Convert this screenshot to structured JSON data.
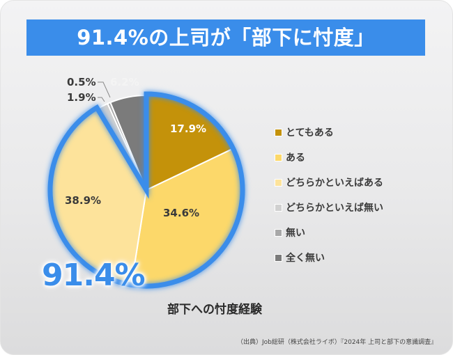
{
  "banner": {
    "title": "91.4%の上司が「部下に忖度」"
  },
  "highlight": {
    "value": "91.4%"
  },
  "chart_data": {
    "type": "pie",
    "title": "部下への忖度経験",
    "categories": [
      "とてもある",
      "ある",
      "どちらかといえばある",
      "どちらかといえば無い",
      "無い",
      "全く無い"
    ],
    "values": [
      17.9,
      34.6,
      38.9,
      1.9,
      0.5,
      6.2
    ],
    "value_labels": [
      "17.9%",
      "34.6%",
      "38.9%",
      "1.9%",
      "0.5%",
      "6.2%"
    ],
    "colors": [
      "#c4920a",
      "#fcd86a",
      "#fde39b",
      "#d0d0d0",
      "#a8a8a8",
      "#7b7b7b"
    ],
    "highlighted_total": "91.4%",
    "highlighted_categories": [
      "とてもある",
      "ある",
      "どちらかといえばある"
    ],
    "highlight_color": "#3a8dea",
    "legend_position": "right"
  },
  "legend": {
    "items": [
      {
        "label": "とてもある",
        "color": "#c4920a"
      },
      {
        "label": "ある",
        "color": "#fcd86a"
      },
      {
        "label": "どちらかといえばある",
        "color": "#fde39b"
      },
      {
        "label": "どちらかといえば無い",
        "color": "#d0d0d0"
      },
      {
        "label": "無い",
        "color": "#a8a8a8"
      },
      {
        "label": "全く無い",
        "color": "#7b7b7b"
      }
    ]
  },
  "labels": {
    "s1": "17.9%",
    "s2": "34.6%",
    "s3": "38.9%",
    "s4": "1.9%",
    "s5": "0.5%",
    "s6": "6.2%"
  },
  "chart_title": "部下への忖度経験",
  "source": "（出典）Job総研（株式会社ライボ）『2024年 上司と部下の意識調査』"
}
